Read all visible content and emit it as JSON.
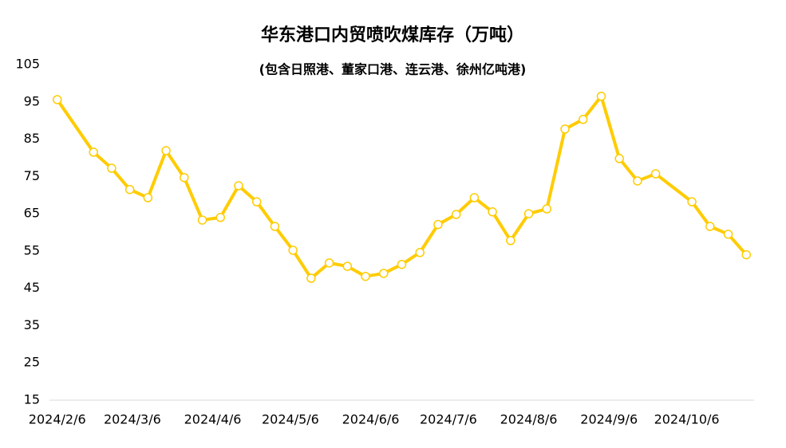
{
  "chart_data": {
    "type": "line",
    "title": "华东港口内贸喷吹煤库存（万吨）",
    "subtitle": "(包含日照港、董家口港、连云港、徐州亿吨港)",
    "x": [
      "2024-02-06",
      "2024-02-20",
      "2024-02-27",
      "2024-03-05",
      "2024-03-12",
      "2024-03-19",
      "2024-03-26",
      "2024-04-02",
      "2024-04-09",
      "2024-04-16",
      "2024-04-23",
      "2024-04-30",
      "2024-05-07",
      "2024-05-14",
      "2024-05-21",
      "2024-05-28",
      "2024-06-04",
      "2024-06-11",
      "2024-06-18",
      "2024-06-25",
      "2024-07-02",
      "2024-07-09",
      "2024-07-16",
      "2024-07-23",
      "2024-07-30",
      "2024-08-06",
      "2024-08-13",
      "2024-08-20",
      "2024-08-27",
      "2024-09-03",
      "2024-09-10",
      "2024-09-17",
      "2024-09-24",
      "2024-10-08",
      "2024-10-15",
      "2024-10-22",
      "2024-10-29"
    ],
    "series": [
      {
        "color": "#FFCC00",
        "values": [
          95.6,
          81.5,
          77.2,
          71.5,
          69.3,
          81.9,
          74.7,
          63.3,
          64.0,
          72.5,
          68.2,
          61.6,
          55.2,
          47.7,
          51.8,
          50.9,
          48.2,
          49.0,
          51.4,
          54.6,
          62.1,
          64.8,
          69.3,
          65.5,
          57.8,
          65.0,
          66.3,
          87.7,
          90.3,
          96.5,
          79.8,
          73.8,
          75.7,
          68.2,
          61.6,
          59.5,
          54.0
        ]
      }
    ],
    "xlim": [
      "2024-02-03",
      "2024-11-01"
    ],
    "xticks": [
      {
        "value": "2024-02-06",
        "label": "2024/2/6"
      },
      {
        "value": "2024-03-06",
        "label": "2024/3/6"
      },
      {
        "value": "2024-04-06",
        "label": "2024/4/6"
      },
      {
        "value": "2024-05-06",
        "label": "2024/5/6"
      },
      {
        "value": "2024-06-06",
        "label": "2024/6/6"
      },
      {
        "value": "2024-07-06",
        "label": "2024/7/6"
      },
      {
        "value": "2024-08-06",
        "label": "2024/8/6"
      },
      {
        "value": "2024-09-06",
        "label": "2024/9/6"
      },
      {
        "value": "2024-10-06",
        "label": "2024/10/6"
      }
    ],
    "ylim": [
      15,
      105
    ],
    "yticks": [
      15,
      25,
      35,
      45,
      55,
      65,
      75,
      85,
      95,
      105
    ],
    "grid": false
  }
}
